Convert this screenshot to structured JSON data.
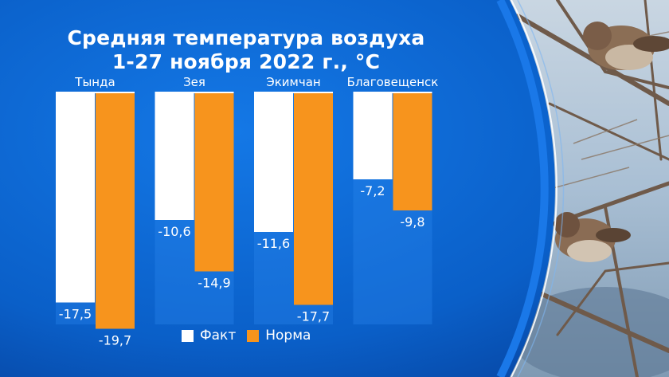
{
  "title_lines": [
    "Средняя температура воздуха",
    "1-27 ноября 2022 г., °С"
  ],
  "colors": {
    "background": "#0a5fc8",
    "background_dark": "#0748a6",
    "fact": "#ffffff",
    "norm": "#f7941d",
    "text": "#ffffff"
  },
  "legend": [
    {
      "label": "Факт",
      "color": "#ffffff"
    },
    {
      "label": "Норма",
      "color": "#f7941d"
    }
  ],
  "chart_data": {
    "type": "bar",
    "title": "Средняя температура воздуха 1-27 ноября 2022 г., °С",
    "categories": [
      "Тында",
      "Зея",
      "Экимчан",
      "Благовещенск"
    ],
    "series": [
      {
        "name": "Факт",
        "values": [
          -17.5,
          -10.6,
          -11.6,
          -7.2
        ],
        "labels": [
          "-17,5",
          "-10,6",
          "-11,6",
          "-7,2"
        ]
      },
      {
        "name": "Норма",
        "values": [
          -19.7,
          -14.9,
          -17.7,
          -9.8
        ],
        "labels": [
          "-19,7",
          "-14,9",
          "-17,7",
          "-9,8"
        ]
      }
    ],
    "ylim": [
      -20,
      0
    ],
    "value_axis_inverted": true,
    "grid": false,
    "legend_position": "bottom"
  },
  "background_photo": {
    "description_icon": "sparrows-on-branches-photo"
  }
}
